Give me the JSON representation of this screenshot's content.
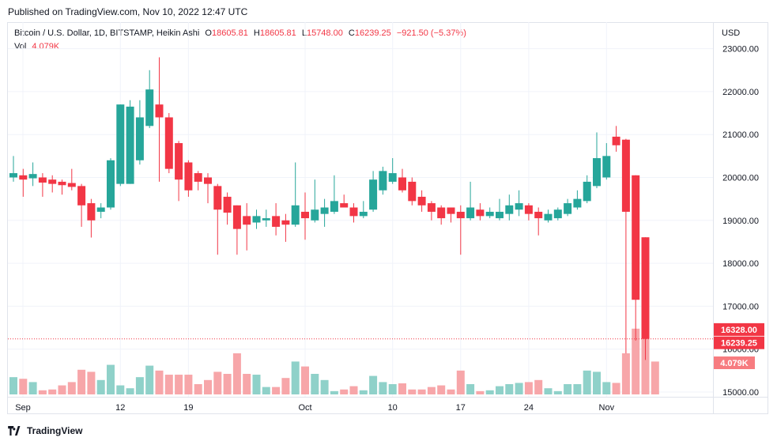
{
  "header": {
    "published": "Published on TradingView.com, Nov 10, 2022 12:47 UTC"
  },
  "legend": {
    "symbol": "Bitcoin / U.S. Dollar, 1D, BITSTAMP, Heikin Ashi",
    "o_label": "O",
    "o_value": "18605.81",
    "h_label": "H",
    "h_value": "18605.81",
    "l_label": "L",
    "l_value": "15748.00",
    "c_label": "C",
    "c_value": "16239.25",
    "change": "−921.50 (−5.37%)",
    "vol_label": "Vol",
    "vol_value": "4.079K"
  },
  "currency": "USD",
  "footer": {
    "brand": "TradingView"
  },
  "colors": {
    "up": "#26a69a",
    "down": "#f23645",
    "vol_up": "#8fd1c9",
    "vol_down": "#f7a6a9",
    "grid": "#f0f3fa"
  },
  "chart_data": {
    "type": "candlestick",
    "ylim": [
      15000,
      23200
    ],
    "y_ticks": [
      15000,
      16000,
      17000,
      18000,
      19000,
      20000,
      21000,
      22000,
      23000
    ],
    "y_tick_labels": [
      "15000.00",
      "16000.00",
      "17000.00",
      "18000.00",
      "19000.00",
      "20000.00",
      "21000.00",
      "22000.00",
      "23000.00"
    ],
    "x_ticks": [
      {
        "label": "Sep",
        "index": 0
      },
      {
        "label": "12",
        "index": 11
      },
      {
        "label": "19",
        "index": 18
      },
      {
        "label": "Oct",
        "index": 30
      },
      {
        "label": "10",
        "index": 39
      },
      {
        "label": "17",
        "index": 46
      },
      {
        "label": "24",
        "index": 53
      },
      {
        "label": "Nov",
        "index": 61
      }
    ],
    "price_labels": [
      {
        "value": 16328.0,
        "text": "16328.00"
      },
      {
        "value": 16239.25,
        "text": "16239.25"
      }
    ],
    "volume_label": "4.079K",
    "last_price_line": 16239.25,
    "candles": [
      {
        "o": 20000,
        "h": 20500,
        "l": 19900,
        "c": 20100,
        "v": 0.42
      },
      {
        "o": 20050,
        "h": 20200,
        "l": 19550,
        "c": 19950,
        "v": 0.38
      },
      {
        "o": 19980,
        "h": 20350,
        "l": 19800,
        "c": 20080,
        "v": 0.3
      },
      {
        "o": 20000,
        "h": 20100,
        "l": 19550,
        "c": 19880,
        "v": 0.1
      },
      {
        "o": 19950,
        "h": 20050,
        "l": 19650,
        "c": 19850,
        "v": 0.12
      },
      {
        "o": 19900,
        "h": 19950,
        "l": 19600,
        "c": 19820,
        "v": 0.22
      },
      {
        "o": 19870,
        "h": 20200,
        "l": 19700,
        "c": 19780,
        "v": 0.3
      },
      {
        "o": 19800,
        "h": 19850,
        "l": 18850,
        "c": 19350,
        "v": 0.6
      },
      {
        "o": 19400,
        "h": 19500,
        "l": 18600,
        "c": 19000,
        "v": 0.55
      },
      {
        "o": 19200,
        "h": 19400,
        "l": 19050,
        "c": 19300,
        "v": 0.35
      },
      {
        "o": 19300,
        "h": 20450,
        "l": 19250,
        "c": 20400,
        "v": 0.72
      },
      {
        "o": 19850,
        "h": 21700,
        "l": 19800,
        "c": 21700,
        "v": 0.22
      },
      {
        "o": 19850,
        "h": 21800,
        "l": 19850,
        "c": 21650,
        "v": 0.15
      },
      {
        "o": 20400,
        "h": 21800,
        "l": 20300,
        "c": 21400,
        "v": 0.42
      },
      {
        "o": 21200,
        "h": 22500,
        "l": 21150,
        "c": 22050,
        "v": 0.7
      },
      {
        "o": 21700,
        "h": 22800,
        "l": 19900,
        "c": 21400,
        "v": 0.58
      },
      {
        "o": 21400,
        "h": 21500,
        "l": 20100,
        "c": 20200,
        "v": 0.48
      },
      {
        "o": 20800,
        "h": 20850,
        "l": 19450,
        "c": 19950,
        "v": 0.48
      },
      {
        "o": 20350,
        "h": 20400,
        "l": 19550,
        "c": 19700,
        "v": 0.48
      },
      {
        "o": 20100,
        "h": 20150,
        "l": 19700,
        "c": 19900,
        "v": 0.25
      },
      {
        "o": 20000,
        "h": 20100,
        "l": 19400,
        "c": 19850,
        "v": 0.35
      },
      {
        "o": 19800,
        "h": 19850,
        "l": 18200,
        "c": 19250,
        "v": 0.55
      },
      {
        "o": 19550,
        "h": 19650,
        "l": 18900,
        "c": 19180,
        "v": 0.5
      },
      {
        "o": 19350,
        "h": 19350,
        "l": 18200,
        "c": 18800,
        "v": 1.0
      },
      {
        "o": 19100,
        "h": 19400,
        "l": 18300,
        "c": 18900,
        "v": 0.5
      },
      {
        "o": 18950,
        "h": 19250,
        "l": 18800,
        "c": 19100,
        "v": 0.48
      },
      {
        "o": 19000,
        "h": 19250,
        "l": 18850,
        "c": 19050,
        "v": 0.18
      },
      {
        "o": 19100,
        "h": 19400,
        "l": 18650,
        "c": 18850,
        "v": 0.18
      },
      {
        "o": 19000,
        "h": 19150,
        "l": 18500,
        "c": 18900,
        "v": 0.4
      },
      {
        "o": 18900,
        "h": 20350,
        "l": 18850,
        "c": 19350,
        "v": 0.8
      },
      {
        "o": 19200,
        "h": 19650,
        "l": 18550,
        "c": 19050,
        "v": 0.68
      },
      {
        "o": 19000,
        "h": 19950,
        "l": 18950,
        "c": 19250,
        "v": 0.5
      },
      {
        "o": 19150,
        "h": 19500,
        "l": 18850,
        "c": 19300,
        "v": 0.35
      },
      {
        "o": 19200,
        "h": 20050,
        "l": 19150,
        "c": 19450,
        "v": 0.08
      },
      {
        "o": 19400,
        "h": 19600,
        "l": 19350,
        "c": 19300,
        "v": 0.12
      },
      {
        "o": 19300,
        "h": 19400,
        "l": 18950,
        "c": 19100,
        "v": 0.2
      },
      {
        "o": 19100,
        "h": 19450,
        "l": 19050,
        "c": 19200,
        "v": 0.1
      },
      {
        "o": 19250,
        "h": 20150,
        "l": 19200,
        "c": 19950,
        "v": 0.45
      },
      {
        "o": 19700,
        "h": 20250,
        "l": 19600,
        "c": 20150,
        "v": 0.3
      },
      {
        "o": 19900,
        "h": 20450,
        "l": 19850,
        "c": 20100,
        "v": 0.25
      },
      {
        "o": 20000,
        "h": 20200,
        "l": 19650,
        "c": 19700,
        "v": 0.27
      },
      {
        "o": 19900,
        "h": 20000,
        "l": 19350,
        "c": 19450,
        "v": 0.12
      },
      {
        "o": 19550,
        "h": 19700,
        "l": 19200,
        "c": 19350,
        "v": 0.12
      },
      {
        "o": 19400,
        "h": 19450,
        "l": 19000,
        "c": 19200,
        "v": 0.18
      },
      {
        "o": 19300,
        "h": 19350,
        "l": 18900,
        "c": 19050,
        "v": 0.22
      },
      {
        "o": 19300,
        "h": 19300,
        "l": 18950,
        "c": 19150,
        "v": 0.12
      },
      {
        "o": 19200,
        "h": 19350,
        "l": 18200,
        "c": 19050,
        "v": 0.58
      },
      {
        "o": 19050,
        "h": 19900,
        "l": 19000,
        "c": 19300,
        "v": 0.25
      },
      {
        "o": 19250,
        "h": 19400,
        "l": 19000,
        "c": 19100,
        "v": 0.08
      },
      {
        "o": 19100,
        "h": 19300,
        "l": 19050,
        "c": 19200,
        "v": 0.1
      },
      {
        "o": 19050,
        "h": 19500,
        "l": 19000,
        "c": 19200,
        "v": 0.2
      },
      {
        "o": 19150,
        "h": 19600,
        "l": 19000,
        "c": 19350,
        "v": 0.25
      },
      {
        "o": 19250,
        "h": 19700,
        "l": 19100,
        "c": 19400,
        "v": 0.28
      },
      {
        "o": 19350,
        "h": 19400,
        "l": 19000,
        "c": 19150,
        "v": 0.3
      },
      {
        "o": 19200,
        "h": 19300,
        "l": 18650,
        "c": 19050,
        "v": 0.35
      },
      {
        "o": 19000,
        "h": 19250,
        "l": 18950,
        "c": 19150,
        "v": 0.15
      },
      {
        "o": 19050,
        "h": 19300,
        "l": 19000,
        "c": 19250,
        "v": 0.08
      },
      {
        "o": 19150,
        "h": 19500,
        "l": 19100,
        "c": 19400,
        "v": 0.25
      },
      {
        "o": 19300,
        "h": 19700,
        "l": 19250,
        "c": 19500,
        "v": 0.25
      },
      {
        "o": 19450,
        "h": 20050,
        "l": 19400,
        "c": 19900,
        "v": 0.58
      },
      {
        "o": 19800,
        "h": 21050,
        "l": 19750,
        "c": 20450,
        "v": 0.55
      },
      {
        "o": 20000,
        "h": 20800,
        "l": 19950,
        "c": 20500,
        "v": 0.3
      }
    ]
  }
}
